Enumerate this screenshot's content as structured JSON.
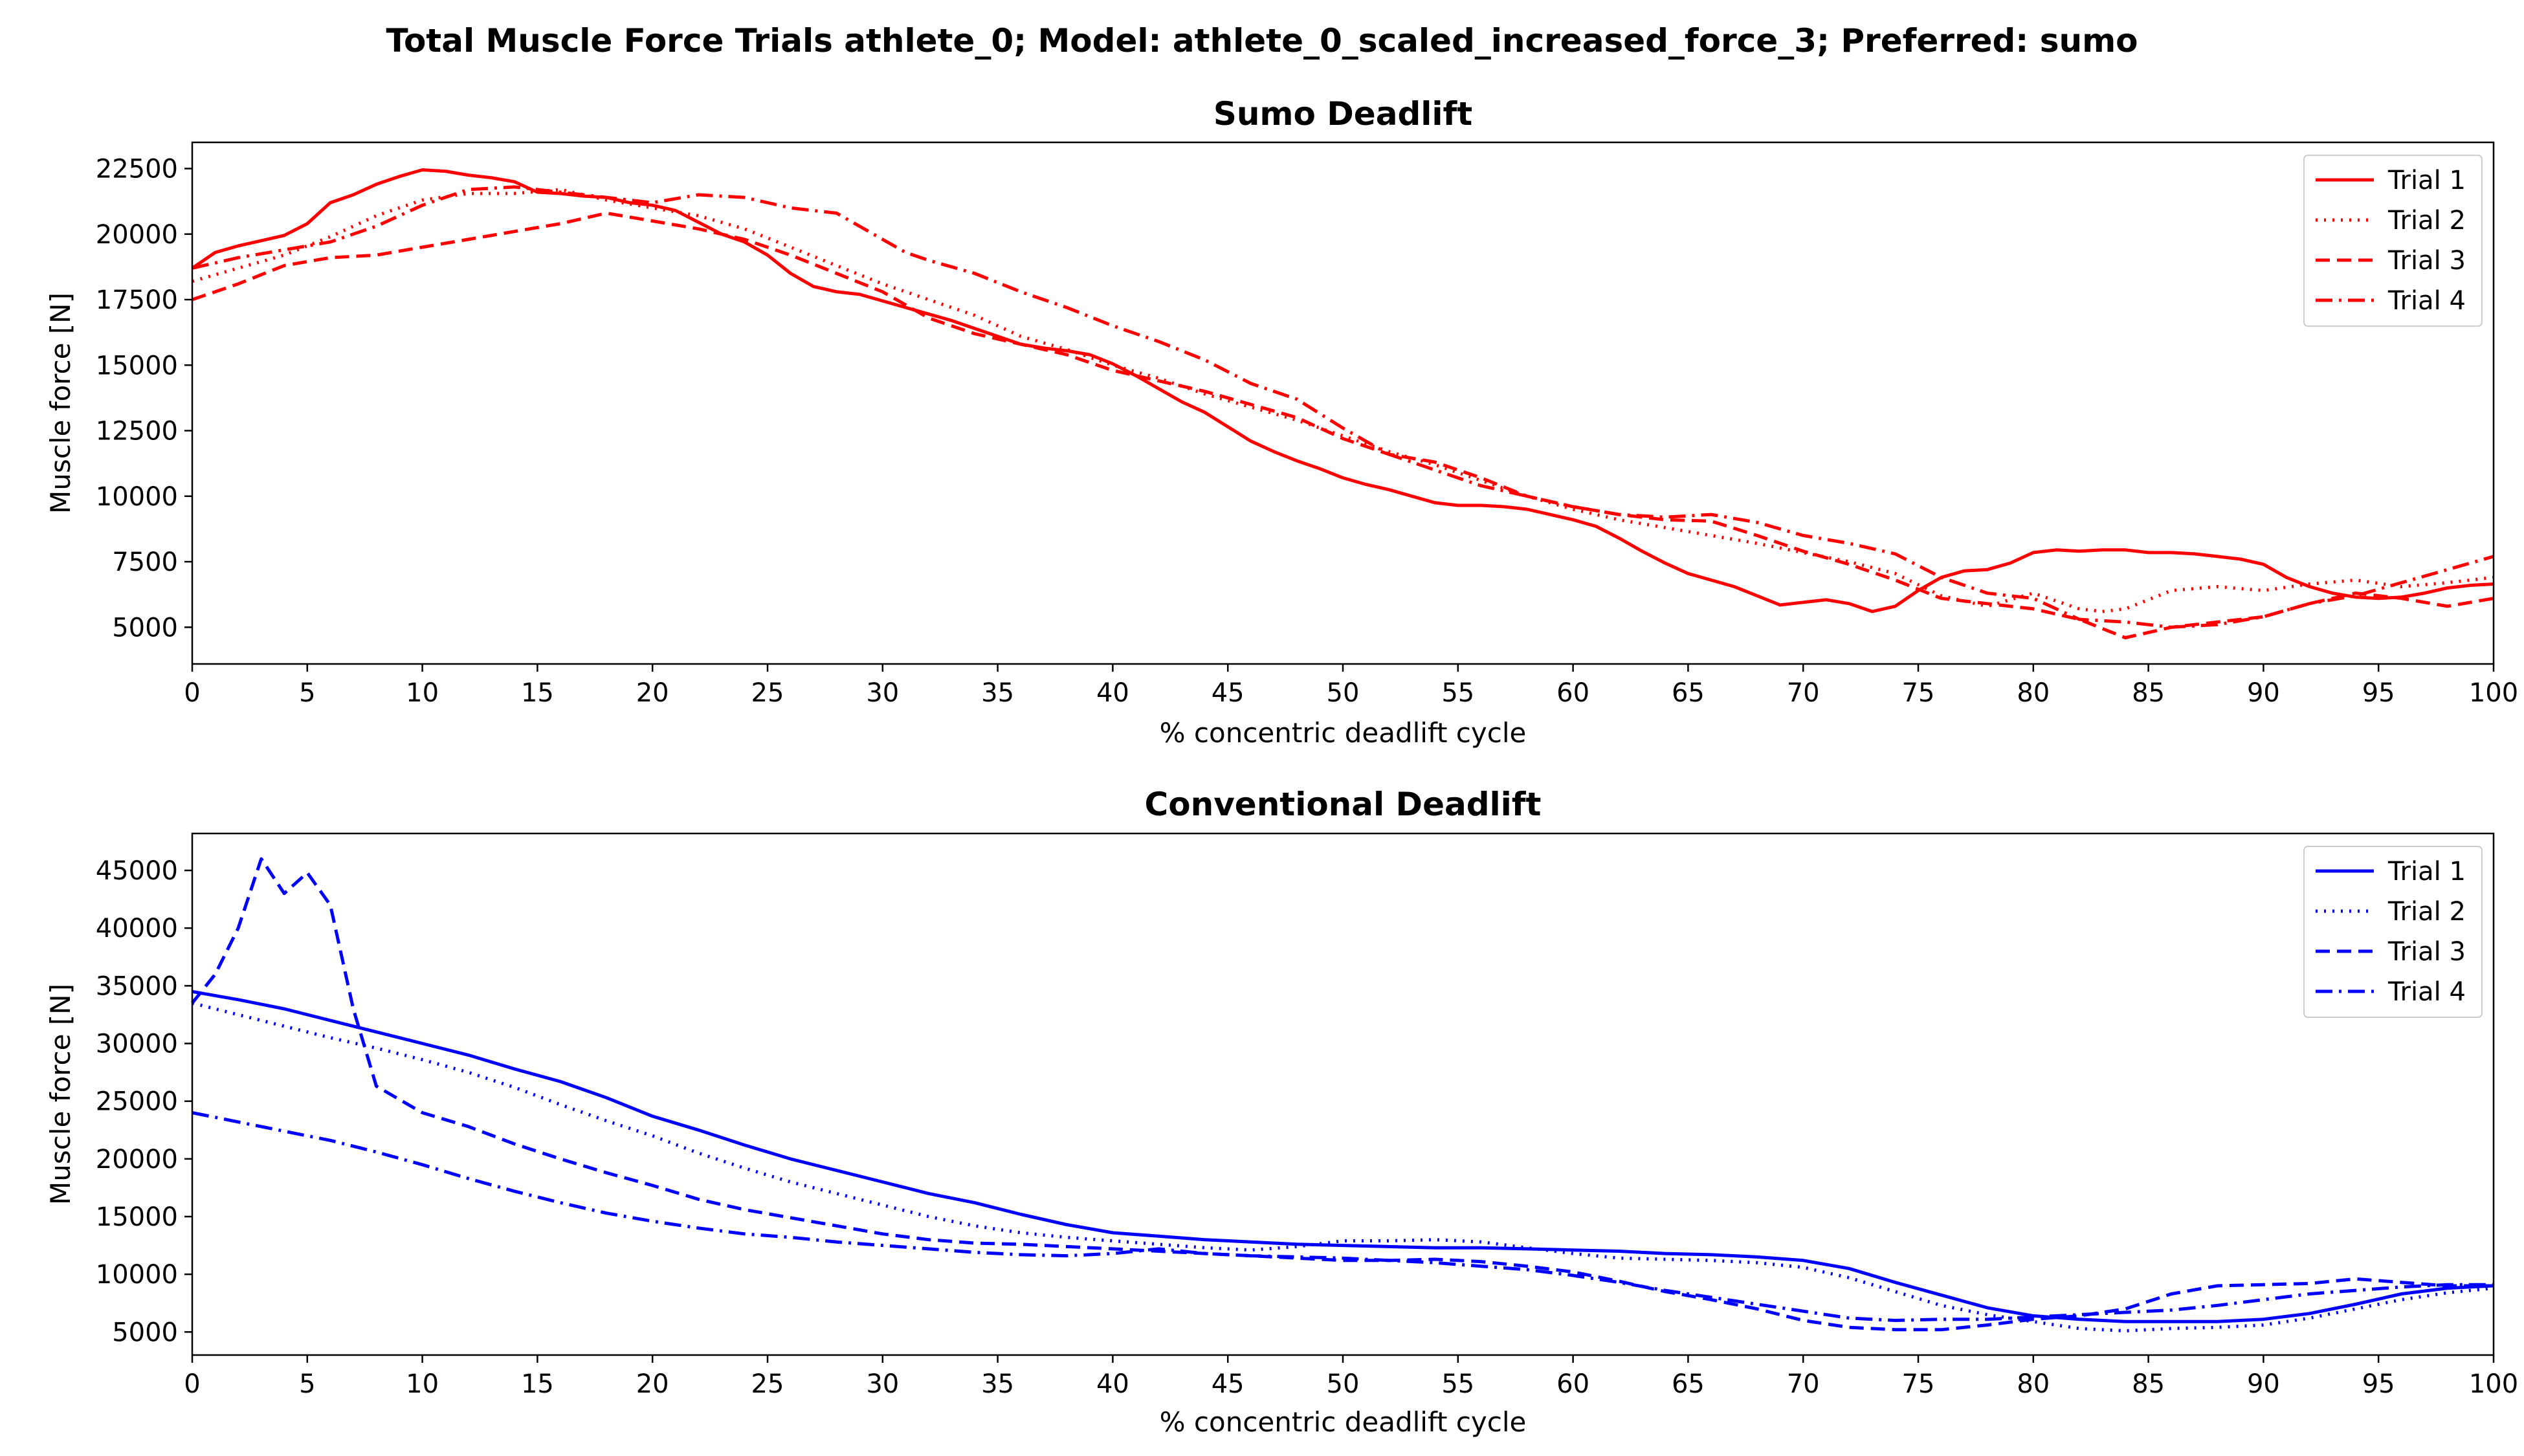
{
  "figure": {
    "suptitle": "Total Muscle Force Trials athlete_0; Model: athlete_0_scaled_increased_force_3; Preferred: sumo"
  },
  "chart_data": [
    {
      "type": "line",
      "title": "Sumo Deadlift",
      "xlabel": "% concentric deadlift cycle",
      "ylabel": "Muscle force [N]",
      "xlim": [
        0,
        100
      ],
      "ylim": [
        3600,
        23500
      ],
      "xticks": [
        0,
        5,
        10,
        15,
        20,
        25,
        30,
        35,
        40,
        45,
        50,
        55,
        60,
        65,
        70,
        75,
        80,
        85,
        90,
        95,
        100
      ],
      "yticks": [
        5000,
        7500,
        10000,
        12500,
        15000,
        17500,
        20000,
        22500
      ],
      "grid": false,
      "legend_position": "top-right",
      "color": "#ff0000",
      "series": [
        {
          "name": "Trial 1",
          "dash": "solid",
          "x": [
            0,
            1,
            2,
            3,
            4,
            5,
            6,
            7,
            8,
            9,
            10,
            11,
            12,
            13,
            14,
            15,
            16,
            17,
            18,
            19,
            20,
            21,
            22,
            23,
            24,
            25,
            26,
            27,
            28,
            29,
            30,
            31,
            32,
            33,
            34,
            35,
            36,
            37,
            38,
            39,
            40,
            41,
            42,
            43,
            44,
            45,
            46,
            47,
            48,
            49,
            50,
            51,
            52,
            53,
            54,
            55,
            56,
            57,
            58,
            59,
            60,
            61,
            62,
            63,
            64,
            65,
            66,
            67,
            68,
            69,
            70,
            71,
            72,
            73,
            74,
            75,
            76,
            77,
            78,
            79,
            80,
            81,
            82,
            83,
            84,
            85,
            86,
            87,
            88,
            89,
            90,
            91,
            92,
            93,
            94,
            95,
            96,
            97,
            98,
            99,
            100
          ],
          "y": [
            18700,
            19300,
            19550,
            19750,
            19950,
            20400,
            21200,
            21500,
            21900,
            22200,
            22450,
            22400,
            22250,
            22150,
            22000,
            21600,
            21550,
            21450,
            21400,
            21200,
            21100,
            20900,
            20450,
            20000,
            19700,
            19200,
            18500,
            18000,
            17800,
            17700,
            17450,
            17200,
            16950,
            16700,
            16400,
            16100,
            15800,
            15650,
            15550,
            15400,
            15050,
            14600,
            14100,
            13600,
            13200,
            12650,
            12100,
            11700,
            11350,
            11050,
            10700,
            10450,
            10250,
            10000,
            9750,
            9650,
            9650,
            9600,
            9500,
            9300,
            9100,
            8850,
            8400,
            7900,
            7450,
            7050,
            6800,
            6550,
            6200,
            5850,
            5950,
            6050,
            5900,
            5600,
            5800,
            6400,
            6900,
            7150,
            7200,
            7450,
            7850,
            7950,
            7900,
            7950,
            7950,
            7850,
            7850,
            7800,
            7700,
            7600,
            7400,
            6900,
            6550,
            6300,
            6150,
            6100,
            6150,
            6300,
            6500,
            6600,
            6650
          ]
        },
        {
          "name": "Trial 2",
          "dash": "dotted",
          "x": [
            0,
            2,
            4,
            6,
            8,
            10,
            12,
            14,
            16,
            18,
            20,
            22,
            24,
            26,
            28,
            30,
            32,
            34,
            36,
            38,
            40,
            42,
            44,
            46,
            48,
            50,
            52,
            54,
            56,
            58,
            60,
            62,
            64,
            66,
            68,
            70,
            72,
            74,
            76,
            78,
            80,
            82,
            83,
            84,
            86,
            88,
            90,
            92,
            94,
            96,
            98,
            100
          ],
          "y": [
            18200,
            18700,
            19200,
            19900,
            20700,
            21300,
            21550,
            21550,
            21700,
            21300,
            21000,
            20700,
            20200,
            19500,
            18800,
            18100,
            17500,
            16900,
            16100,
            15600,
            15000,
            14500,
            13900,
            13400,
            12900,
            12300,
            11700,
            11200,
            10600,
            10000,
            9500,
            9100,
            8800,
            8500,
            8200,
            7850,
            7500,
            7050,
            6200,
            5800,
            6300,
            5700,
            5600,
            5700,
            6400,
            6550,
            6400,
            6650,
            6800,
            6550,
            6700,
            6900
          ]
        },
        {
          "name": "Trial 3",
          "dash": "dashed",
          "x": [
            0,
            2,
            4,
            6,
            8,
            10,
            12,
            14,
            16,
            18,
            20,
            22,
            24,
            26,
            28,
            30,
            32,
            34,
            36,
            38,
            40,
            42,
            44,
            46,
            48,
            50,
            52,
            54,
            56,
            58,
            60,
            62,
            64,
            66,
            68,
            70,
            72,
            74,
            76,
            78,
            80,
            82,
            84,
            86,
            88,
            90,
            92,
            94,
            96,
            98,
            100
          ],
          "y": [
            17500,
            18100,
            18800,
            19100,
            19200,
            19500,
            19800,
            20100,
            20400,
            20800,
            20500,
            20200,
            19800,
            19200,
            18500,
            17800,
            16800,
            16200,
            15800,
            15400,
            14800,
            14400,
            14000,
            13500,
            13000,
            12200,
            11600,
            11300,
            10700,
            10000,
            9600,
            9300,
            9100,
            9050,
            8500,
            7900,
            7400,
            6800,
            6100,
            5900,
            5700,
            5300,
            4600,
            5000,
            5200,
            5400,
            5900,
            6300,
            6100,
            5800,
            6100
          ]
        },
        {
          "name": "Trial 4",
          "dash": "dashdot",
          "x": [
            0,
            2,
            4,
            6,
            8,
            10,
            12,
            14,
            16,
            18,
            20,
            22,
            24,
            26,
            28,
            30,
            31,
            32,
            34,
            36,
            38,
            40,
            42,
            44,
            46,
            48,
            50,
            52,
            54,
            56,
            58,
            60,
            62,
            64,
            66,
            68,
            70,
            72,
            74,
            76,
            78,
            80,
            82,
            84,
            86,
            88,
            90,
            92,
            94,
            96,
            98,
            100
          ],
          "y": [
            18700,
            19100,
            19400,
            19700,
            20300,
            21100,
            21700,
            21800,
            21600,
            21400,
            21200,
            21500,
            21400,
            21000,
            20800,
            19800,
            19300,
            19000,
            18500,
            17800,
            17200,
            16500,
            15900,
            15200,
            14300,
            13700,
            12600,
            11600,
            11000,
            10400,
            10000,
            9600,
            9300,
            9200,
            9300,
            9000,
            8500,
            8200,
            7800,
            6900,
            6300,
            6100,
            5300,
            5200,
            5000,
            5100,
            5400,
            5900,
            6200,
            6700,
            7200,
            7700
          ]
        }
      ]
    },
    {
      "type": "line",
      "title": "Conventional Deadlift",
      "xlabel": "% concentric deadlift cycle",
      "ylabel": "Muscle force [N]",
      "xlim": [
        0,
        100
      ],
      "ylim": [
        3000,
        48200
      ],
      "xticks": [
        0,
        5,
        10,
        15,
        20,
        25,
        30,
        35,
        40,
        45,
        50,
        55,
        60,
        65,
        70,
        75,
        80,
        85,
        90,
        95,
        100
      ],
      "yticks": [
        5000,
        10000,
        15000,
        20000,
        25000,
        30000,
        35000,
        40000,
        45000
      ],
      "grid": false,
      "legend_position": "top-right",
      "color": "#0000ff",
      "series": [
        {
          "name": "Trial 1",
          "dash": "solid",
          "x": [
            0,
            2,
            4,
            6,
            8,
            10,
            12,
            14,
            16,
            18,
            20,
            22,
            24,
            26,
            28,
            30,
            32,
            34,
            36,
            38,
            40,
            42,
            44,
            46,
            48,
            50,
            52,
            54,
            56,
            58,
            60,
            62,
            64,
            66,
            68,
            70,
            72,
            74,
            76,
            78,
            80,
            82,
            84,
            86,
            88,
            90,
            92,
            94,
            96,
            98,
            100
          ],
          "y": [
            34500,
            33800,
            33000,
            32000,
            31000,
            30000,
            29000,
            27800,
            26700,
            25300,
            23700,
            22500,
            21200,
            20000,
            19000,
            18000,
            17000,
            16200,
            15200,
            14300,
            13600,
            13300,
            13000,
            12800,
            12600,
            12500,
            12400,
            12300,
            12300,
            12200,
            12100,
            12000,
            11800,
            11700,
            11500,
            11200,
            10500,
            9300,
            8200,
            7100,
            6400,
            6100,
            5900,
            5900,
            5900,
            6100,
            6600,
            7400,
            8300,
            8800,
            9000
          ]
        },
        {
          "name": "Trial 2",
          "dash": "dotted",
          "x": [
            0,
            2,
            4,
            6,
            8,
            10,
            12,
            14,
            16,
            18,
            20,
            22,
            24,
            26,
            28,
            30,
            32,
            34,
            36,
            38,
            40,
            42,
            44,
            46,
            48,
            50,
            52,
            54,
            56,
            58,
            60,
            62,
            64,
            66,
            68,
            70,
            72,
            74,
            76,
            78,
            80,
            82,
            84,
            86,
            88,
            90,
            92,
            94,
            96,
            98,
            100
          ],
          "y": [
            33500,
            32500,
            31500,
            30500,
            29600,
            28600,
            27500,
            26200,
            24700,
            23300,
            22000,
            20500,
            19200,
            18000,
            17000,
            16000,
            15000,
            14200,
            13600,
            13200,
            12900,
            12600,
            12300,
            12100,
            12400,
            12900,
            12900,
            13000,
            12800,
            12300,
            11800,
            11400,
            11300,
            11200,
            11000,
            10600,
            9700,
            8500,
            7300,
            6500,
            5900,
            5300,
            5100,
            5300,
            5400,
            5600,
            6200,
            7000,
            7800,
            8400,
            8800
          ]
        },
        {
          "name": "Trial 3",
          "dash": "dashed",
          "x": [
            0,
            1,
            2,
            3,
            4,
            5,
            6,
            7,
            8,
            10,
            12,
            14,
            16,
            18,
            20,
            22,
            24,
            26,
            28,
            30,
            32,
            34,
            36,
            38,
            40,
            42,
            44,
            46,
            48,
            50,
            52,
            54,
            56,
            58,
            60,
            62,
            64,
            66,
            68,
            70,
            72,
            74,
            76,
            78,
            80,
            82,
            84,
            86,
            88,
            90,
            92,
            94,
            96,
            98,
            100
          ],
          "y": [
            33500,
            36000,
            40000,
            46000,
            43000,
            44800,
            42000,
            33000,
            26300,
            24000,
            22800,
            21300,
            20000,
            18800,
            17700,
            16500,
            15600,
            14900,
            14200,
            13500,
            13000,
            12700,
            12600,
            12400,
            12200,
            12000,
            11800,
            11600,
            11400,
            11200,
            11200,
            11300,
            11100,
            10700,
            10200,
            9400,
            8500,
            7800,
            7000,
            6000,
            5400,
            5200,
            5200,
            5600,
            6100,
            6400,
            7000,
            8300,
            9000,
            9100,
            9200,
            9600,
            9300,
            9000,
            9000
          ]
        },
        {
          "name": "Trial 4",
          "dash": "dashdot",
          "x": [
            0,
            2,
            4,
            6,
            8,
            10,
            12,
            14,
            16,
            18,
            20,
            22,
            24,
            26,
            28,
            30,
            32,
            34,
            36,
            38,
            40,
            42,
            44,
            46,
            48,
            50,
            52,
            54,
            56,
            58,
            60,
            62,
            64,
            66,
            68,
            70,
            72,
            74,
            76,
            78,
            80,
            82,
            84,
            86,
            88,
            90,
            92,
            94,
            96,
            98,
            100
          ],
          "y": [
            24000,
            23200,
            22400,
            21600,
            20600,
            19500,
            18300,
            17200,
            16200,
            15300,
            14600,
            14000,
            13500,
            13200,
            12800,
            12500,
            12200,
            11900,
            11700,
            11600,
            11800,
            12200,
            11800,
            11600,
            11500,
            11400,
            11200,
            11000,
            10700,
            10400,
            9900,
            9300,
            8600,
            8000,
            7400,
            6800,
            6200,
            6000,
            6100,
            6100,
            6300,
            6500,
            6700,
            6900,
            7300,
            7800,
            8300,
            8600,
            8900,
            9100,
            9100
          ]
        }
      ]
    }
  ]
}
